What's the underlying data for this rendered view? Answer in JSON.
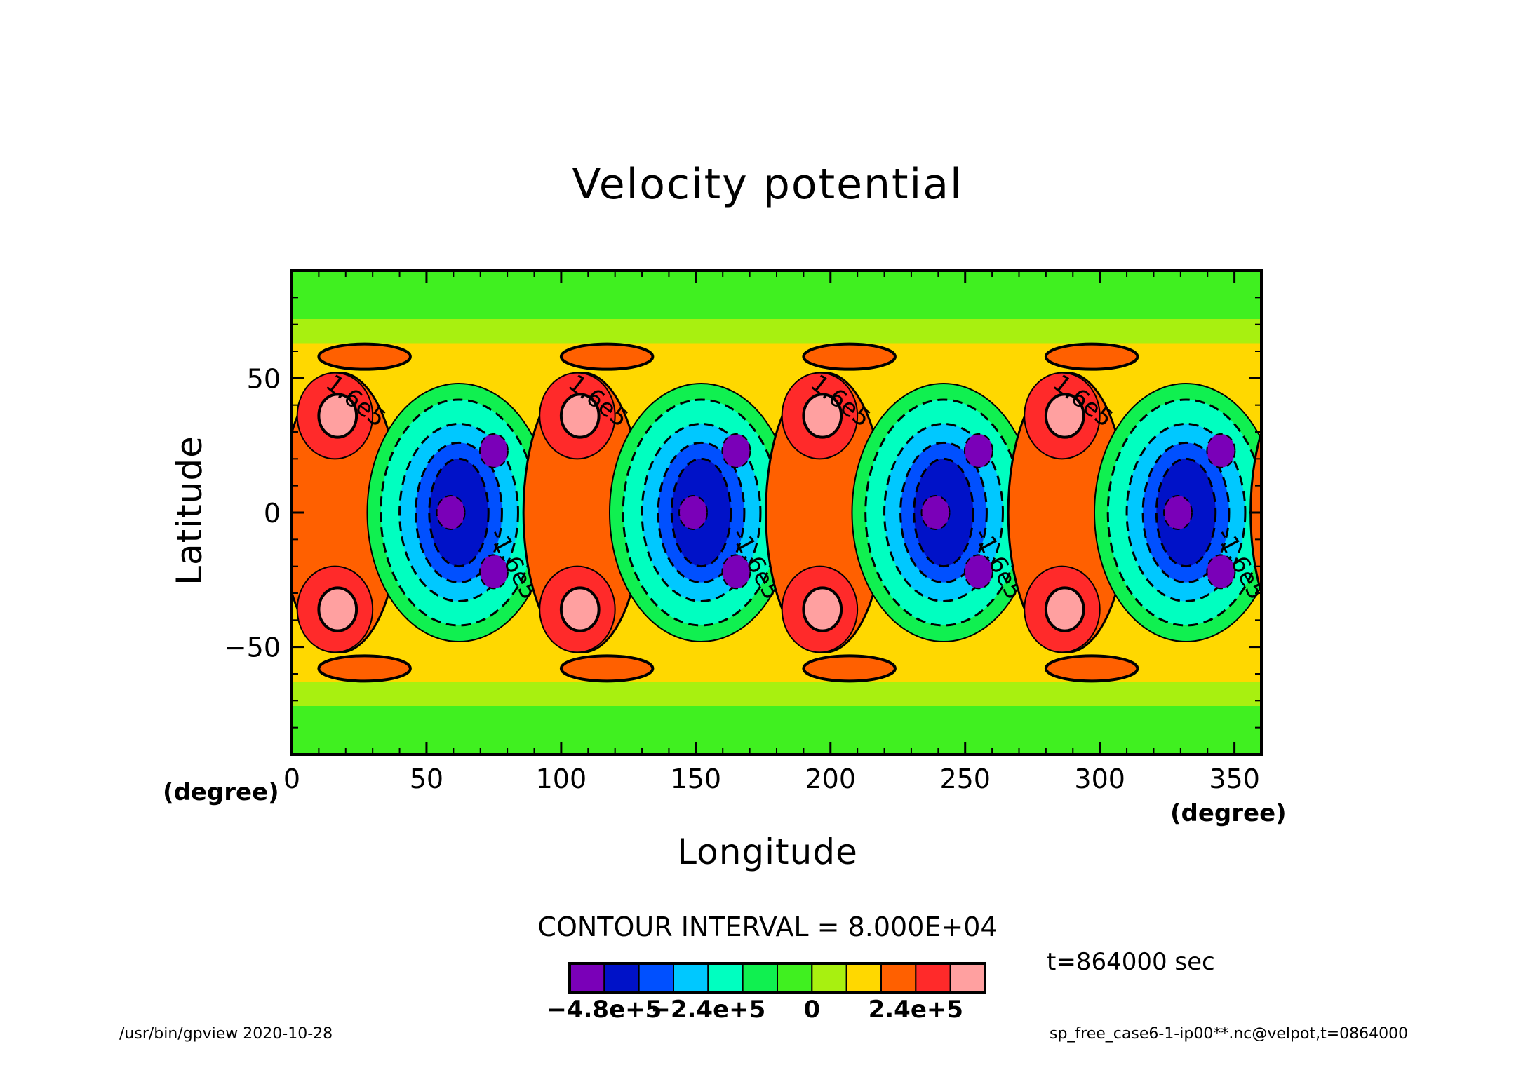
{
  "title": "Velocity potential",
  "chart_data": {
    "type": "heatmap",
    "title": "Velocity potential",
    "xlabel": "Longitude",
    "ylabel": "Latitude",
    "x_unit": "(degree)",
    "y_unit": "(degree)",
    "xlim": [
      0,
      360
    ],
    "ylim": [
      -90,
      90
    ],
    "xticks": [
      "0",
      "50",
      "100",
      "150",
      "200",
      "250",
      "300",
      "350"
    ],
    "yticks": [
      "50",
      "0",
      "−50"
    ],
    "contour_labels": [
      "1.6e5",
      "-1.6e5"
    ],
    "contour_interval_text": "CONTOUR INTERVAL = 8.000E+04",
    "colorbar": {
      "colors": [
        "#7a00b8",
        "#0012c8",
        "#0050ff",
        "#00c8ff",
        "#00ffc0",
        "#10f050",
        "#40f020",
        "#a8f010",
        "#ffd800",
        "#ff6000",
        "#ff2a2a",
        "#ffa0a0"
      ],
      "labels": [
        "−4.8e+5",
        "−2.4e+5",
        "0",
        "2.4e+5"
      ]
    }
  },
  "time_info": "t=864000 sec",
  "footer": {
    "left": "/usr/bin/gpview   2020-10-28",
    "right": "sp_free_case6-1-ip00**.nc@velpot,t=0864000"
  }
}
